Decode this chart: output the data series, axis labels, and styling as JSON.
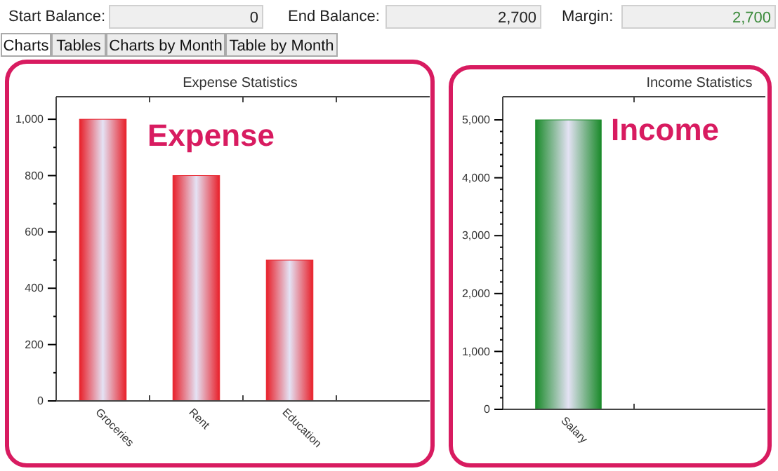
{
  "chart_data": [
    {
      "type": "bar",
      "title": "Expense Statistics",
      "categories": [
        "Groceries",
        "Rent",
        "Education",
        null
      ],
      "values": [
        1000,
        800,
        500,
        null
      ],
      "color": "#e8202a",
      "ylim": [
        0,
        1080
      ],
      "yticks": [
        0,
        {
          "value": 100,
          "label": null
        },
        200,
        {
          "value": 300,
          "label": null
        },
        400,
        {
          "value": 500,
          "label": null
        },
        600,
        {
          "value": 700,
          "label": null
        },
        800,
        {
          "value": 900,
          "label": null
        },
        {
          "value": 1000,
          "label": "1,000"
        }
      ],
      "annotations": [
        "Start Balance:",
        "0",
        "End Balance:",
        "2,700",
        "Margin:",
        "2,700",
        "Charts",
        "Tables",
        "Charts by Month",
        "Table by Month",
        "Expense"
      ]
    },
    {
      "type": "bar",
      "title": "Income Statistics",
      "categories": [
        "Salary",
        null
      ],
      "values": [
        5000,
        null
      ],
      "color": "#1a8a2a",
      "ylim": [
        0,
        5400
      ],
      "yticks": [
        0,
        {
          "value": 200,
          "label": null
        },
        {
          "value": 400,
          "label": null
        },
        {
          "value": 600,
          "label": null
        },
        {
          "value": 800,
          "label": null
        },
        {
          "value": 1000,
          "label": "1,000"
        },
        {
          "value": 1200,
          "label": null
        },
        {
          "value": 1400,
          "label": null
        },
        {
          "value": 1600,
          "label": null
        },
        {
          "value": 1800,
          "label": null
        },
        {
          "value": 2000,
          "label": "2,000"
        },
        {
          "value": 2200,
          "label": null
        },
        {
          "value": 2400,
          "label": null
        },
        {
          "value": 2600,
          "label": null
        },
        {
          "value": 2800,
          "label": null
        },
        {
          "value": 3000,
          "label": "3,000"
        },
        {
          "value": 3200,
          "label": null
        },
        {
          "value": 3400,
          "label": null
        },
        {
          "value": 3600,
          "label": null
        },
        {
          "value": 3800,
          "label": null
        },
        {
          "value": 4000,
          "label": "4,000"
        },
        {
          "value": 4200,
          "label": null
        },
        {
          "value": 4400,
          "label": null
        },
        {
          "value": 4600,
          "label": null
        },
        {
          "value": 4800,
          "label": null
        },
        {
          "value": 5000,
          "label": "5,000"
        }
      ],
      "annotations": [
        "Income"
      ]
    }
  ]
}
